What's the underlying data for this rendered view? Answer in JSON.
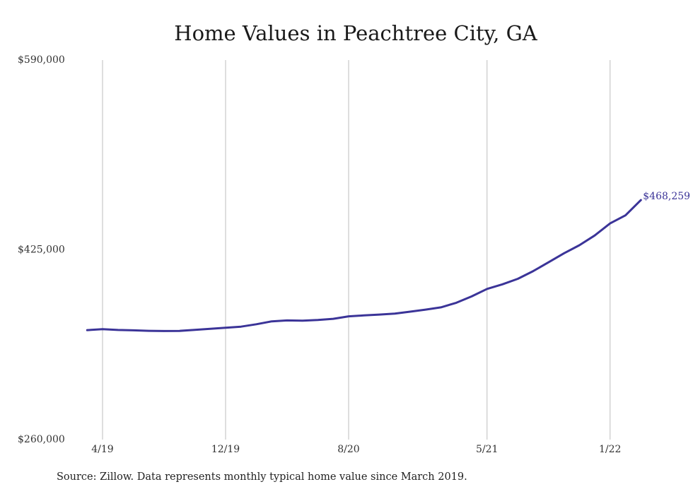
{
  "chart_data": {
    "type": "line",
    "title": "Home Values in Peachtree City, GA",
    "xlabel": "",
    "ylabel": "",
    "x": [
      "3/19",
      "4/19",
      "5/19",
      "6/19",
      "7/19",
      "8/19",
      "9/19",
      "10/19",
      "11/19",
      "12/19",
      "1/20",
      "2/20",
      "3/20",
      "4/20",
      "5/20",
      "6/20",
      "7/20",
      "8/20",
      "9/20",
      "10/20",
      "11/20",
      "12/20",
      "1/21",
      "2/21",
      "3/21",
      "4/21",
      "5/21",
      "6/21",
      "7/21",
      "8/21",
      "9/21",
      "10/21",
      "11/21",
      "12/21",
      "1/22",
      "2/22",
      "3/22"
    ],
    "x_ticks": [
      "4/19",
      "12/19",
      "8/20",
      "5/21",
      "1/22"
    ],
    "y_ticks": [
      "$590,000",
      "$425,000",
      "$260,000"
    ],
    "ylim": [
      260000,
      590000
    ],
    "series": [
      {
        "values": [
          355200,
          356000,
          355300,
          355000,
          354600,
          354400,
          354500,
          355400,
          356300,
          357300,
          358200,
          360300,
          362800,
          363600,
          363400,
          364000,
          365000,
          367200,
          368000,
          368700,
          369500,
          371200,
          373000,
          375000,
          379000,
          384500,
          391000,
          395000,
          399800,
          406500,
          414200,
          422000,
          429000,
          437500,
          448000,
          455000,
          468259
        ],
        "color": "#3b3498"
      }
    ],
    "annotations": [
      {
        "text": "$468,259"
      }
    ],
    "grid": "vertical gridlines at x ticks",
    "line_color": "#3b3498"
  },
  "footer": {
    "source": "Source: Zillow. Data represents monthly typical home value since March 2019."
  }
}
